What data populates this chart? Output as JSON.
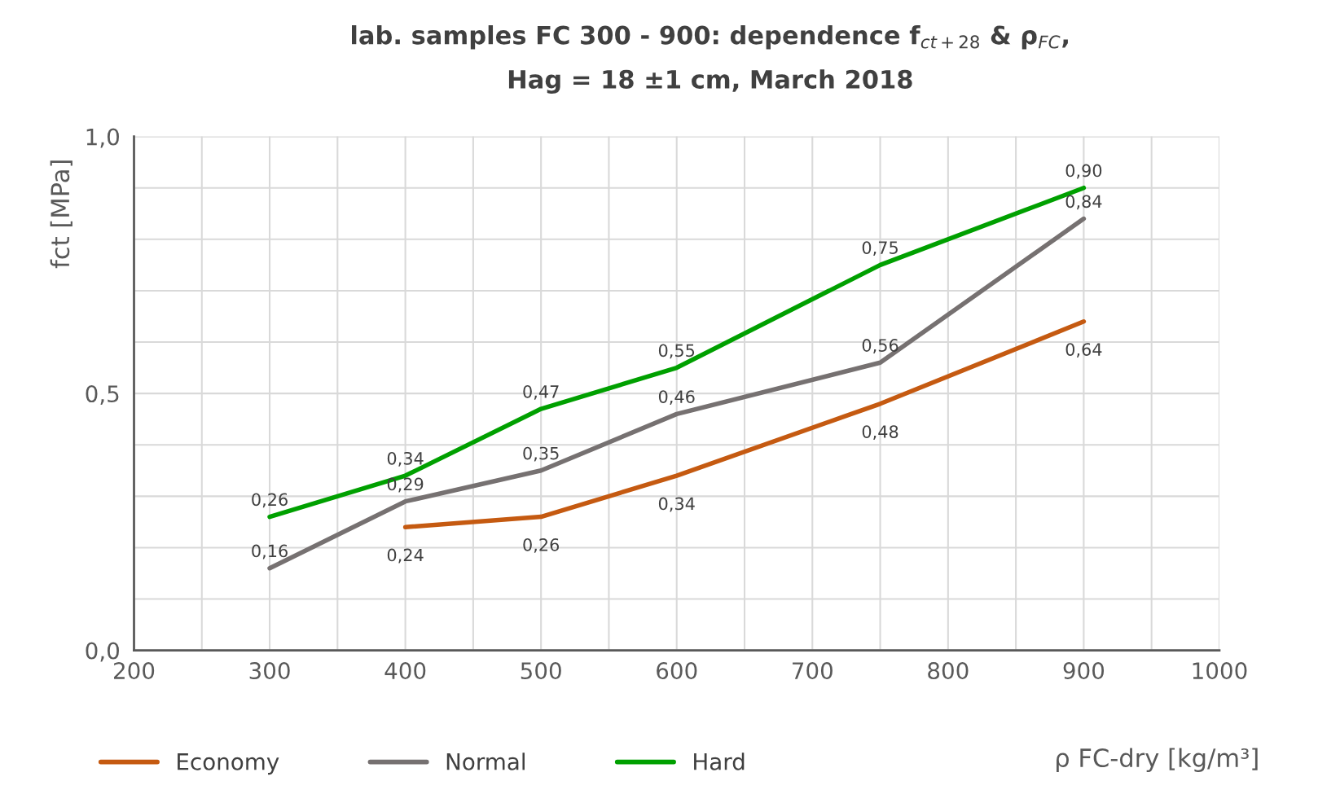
{
  "chart_data": {
    "type": "line",
    "title": "lab. samples FC 300 - 900: dependence f$_{ct+28}$ & ρ$_{FC}$,",
    "subtitle": "Hag = 18 ±1 cm, March 2018",
    "xlabel": "ρ FC-dry [kg/m³]",
    "ylabel": "fct [MPa]",
    "xlim": [
      200,
      1000
    ],
    "xticks": [
      200,
      {
        "value": 250,
        "label": null
      },
      300,
      {
        "value": 350,
        "label": null
      },
      400,
      {
        "value": 450,
        "label": null
      },
      500,
      {
        "value": 550,
        "label": null
      },
      600,
      {
        "value": 650,
        "label": null
      },
      700,
      {
        "value": 750,
        "label": null
      },
      800,
      {
        "value": 850,
        "label": null
      },
      900,
      {
        "value": 950,
        "label": null
      },
      1000
    ],
    "ylim": [
      0,
      1
    ],
    "yticks": [
      {
        "value": 0,
        "label": "0,0"
      },
      {
        "value": 0.1,
        "label": null
      },
      {
        "value": 0.2,
        "label": null
      },
      {
        "value": 0.3,
        "label": null
      },
      {
        "value": 0.4,
        "label": null
      },
      {
        "value": 0.5,
        "label": "0,5"
      },
      {
        "value": 0.6,
        "label": null
      },
      {
        "value": 0.7,
        "label": null
      },
      {
        "value": 0.8,
        "label": null
      },
      {
        "value": 0.9,
        "label": null
      },
      {
        "value": 1.0,
        "label": "1,0"
      }
    ],
    "grid": true,
    "legend": "bottom left",
    "marker": "none",
    "line_style": "solid",
    "series": [
      {
        "name": "Economy",
        "color": "#c55a11",
        "x": [
          400,
          500,
          600,
          750,
          900
        ],
        "values": [
          0.24,
          0.26,
          0.34,
          0.48,
          0.64
        ],
        "value_labels": [
          "0,24",
          "0,26",
          "0,34",
          "0,48",
          "0,64"
        ]
      },
      {
        "name": "Normal",
        "color": "#767171",
        "x": [
          300,
          400,
          500,
          600,
          750,
          900
        ],
        "values": [
          0.16,
          0.29,
          0.35,
          0.46,
          0.56,
          0.84
        ],
        "value_labels": [
          "0,16",
          "0,29",
          "0,35",
          "0,46",
          "0,56",
          "0,84"
        ]
      },
      {
        "name": "Hard",
        "color": "#00a000",
        "x": [
          300,
          400,
          500,
          600,
          750,
          900
        ],
        "values": [
          0.26,
          0.34,
          0.47,
          0.55,
          0.75,
          0.9
        ],
        "value_labels": [
          "0,26",
          "0,34",
          "0,47",
          "0,55",
          "0,75",
          "0,90"
        ]
      }
    ]
  }
}
